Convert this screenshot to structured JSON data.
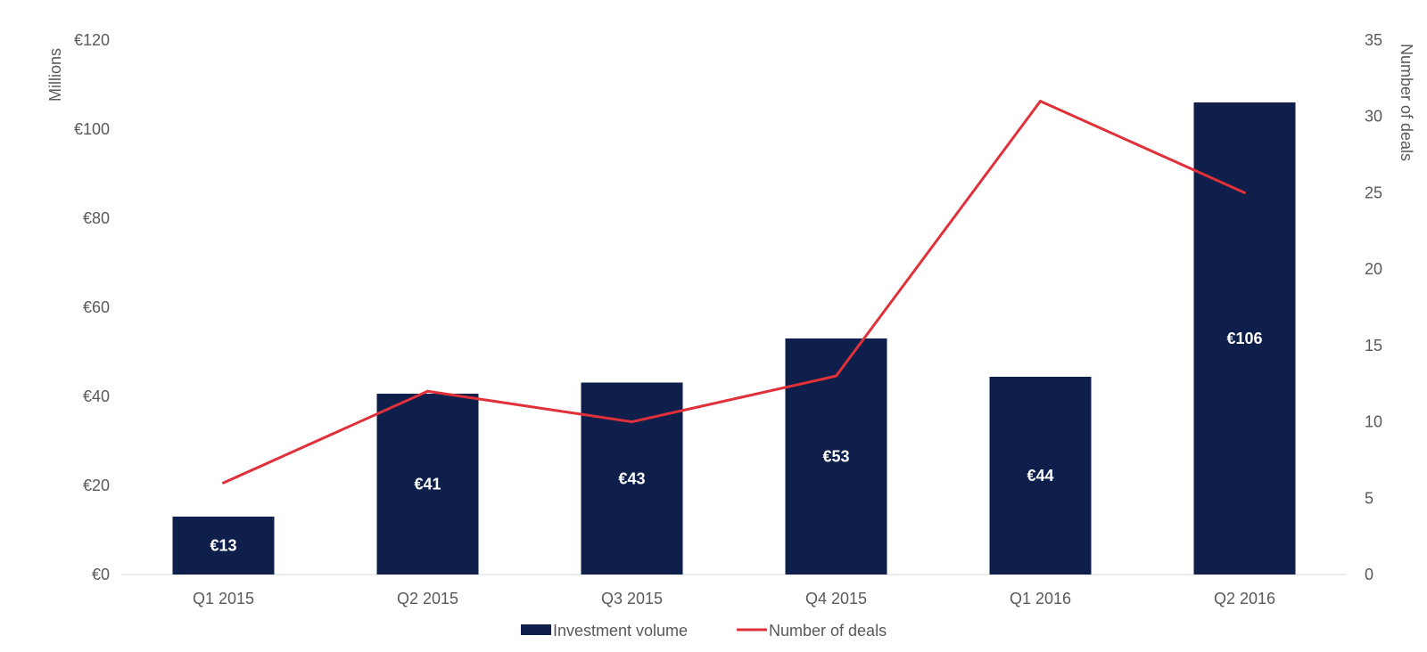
{
  "chart_data": {
    "type": "bar",
    "categories": [
      "Q1 2015",
      "Q2 2015",
      "Q3 2015",
      "Q4 2015",
      "Q1 2016",
      "Q2 2016"
    ],
    "series": [
      {
        "name": "Investment volume",
        "type": "bar",
        "axis": "left",
        "values": [
          13,
          40.6,
          43.1,
          53,
          44.4,
          106
        ],
        "labels": [
          "€13",
          "€41",
          "€43",
          "€53",
          "€44",
          "€106"
        ],
        "color": "#0d1f4a"
      },
      {
        "name": "Number of deals",
        "type": "line",
        "axis": "right",
        "values": [
          6,
          12,
          10,
          13,
          31,
          25
        ],
        "color": "#e0303a"
      }
    ],
    "ylabel": "Millions",
    "y2label": "Number of deals",
    "ylim": [
      0,
      120
    ],
    "y2lim": [
      0,
      35
    ],
    "yticks": [
      "€0",
      "€20",
      "€40",
      "€60",
      "€80",
      "€100",
      "€120"
    ],
    "y2ticks": [
      "0",
      "5",
      "10",
      "15",
      "20",
      "25",
      "30",
      "35"
    ],
    "grid": false,
    "legend": "bottom"
  }
}
